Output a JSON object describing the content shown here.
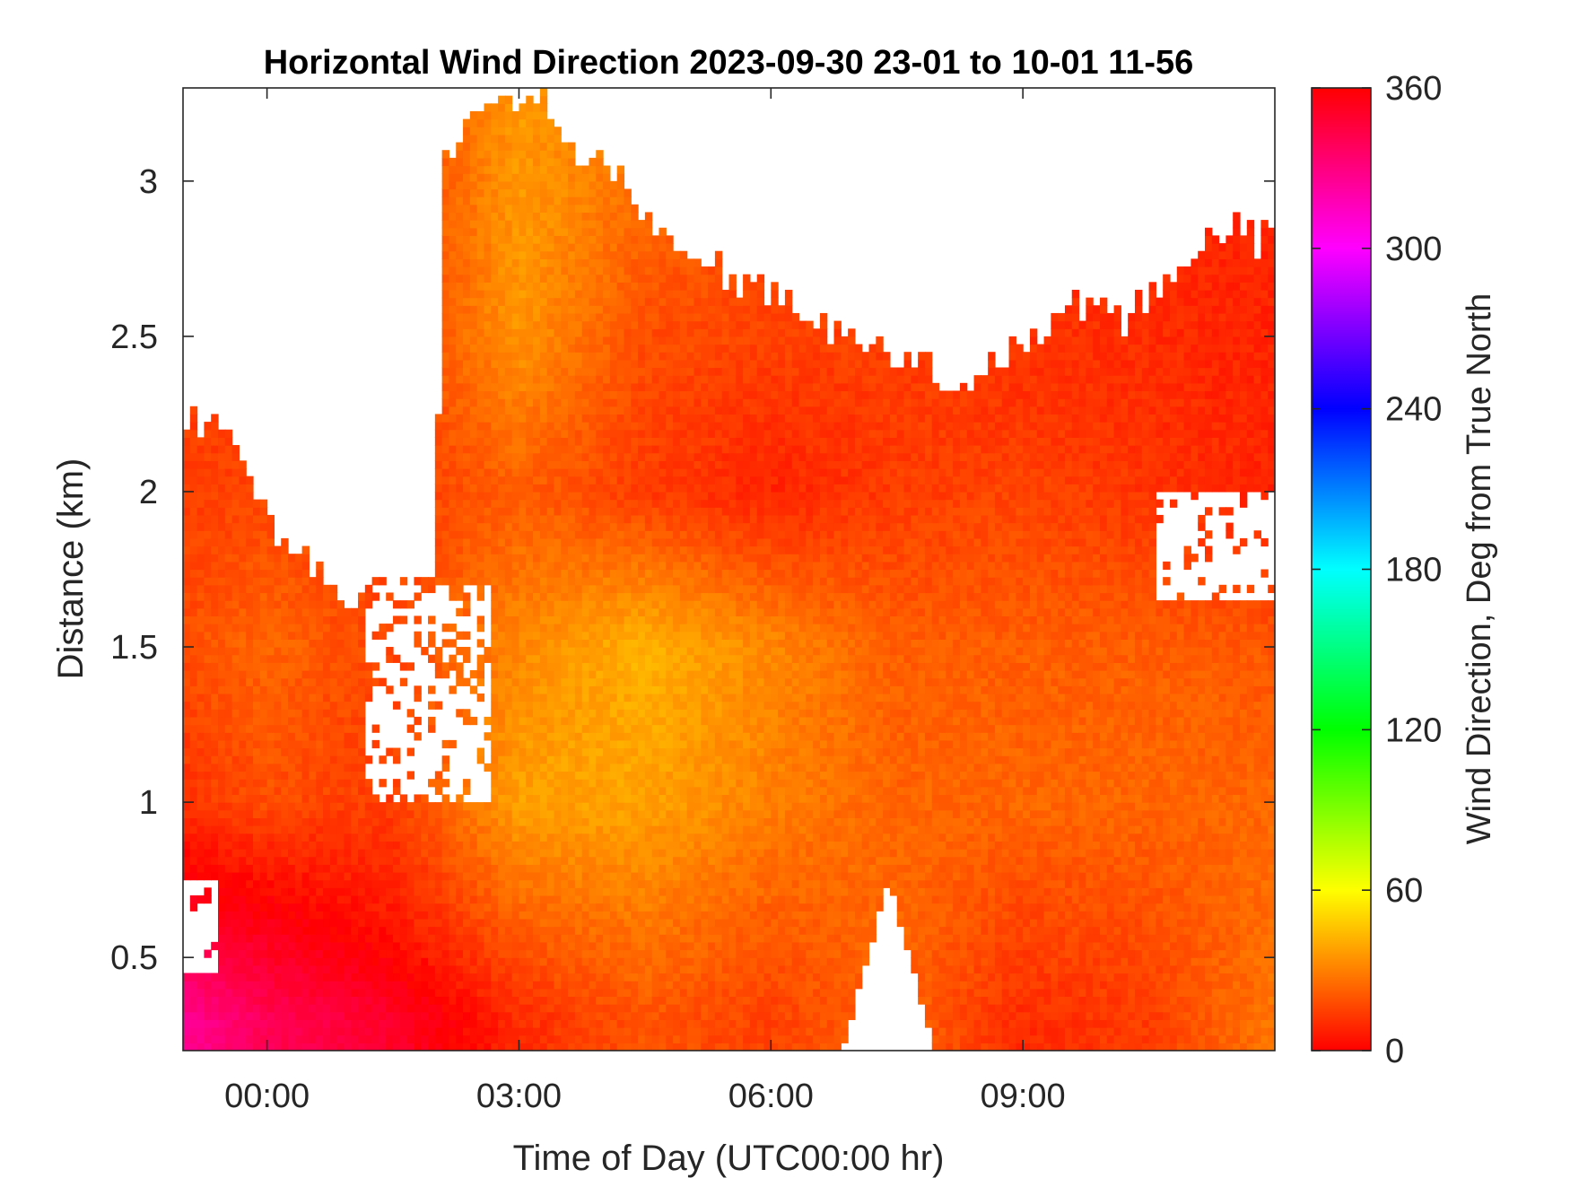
{
  "chart_data": {
    "type": "heatmap",
    "title": "Horizontal Wind Direction 2023-09-30 23-01 to 10-01 11-56",
    "xlabel": "Time of Day (UTC00:00 hr)",
    "ylabel": "Distance (km)",
    "colorbar_label": "Wind Direction, Deg from True North",
    "x_unit": "hours relative to 00:00 UTC",
    "xlim": [
      -1.0,
      12.0
    ],
    "ylim": [
      0.2,
      3.3
    ],
    "clim": [
      0,
      360
    ],
    "x_ticks": [
      {
        "value": 0,
        "label": "00:00"
      },
      {
        "value": 3,
        "label": "03:00"
      },
      {
        "value": 6,
        "label": "06:00"
      },
      {
        "value": 9,
        "label": "09:00"
      }
    ],
    "y_ticks": [
      {
        "value": 0.5,
        "label": "0.5"
      },
      {
        "value": 1.0,
        "label": "1"
      },
      {
        "value": 1.5,
        "label": "1.5"
      },
      {
        "value": 2.0,
        "label": "2"
      },
      {
        "value": 2.5,
        "label": "2.5"
      },
      {
        "value": 3.0,
        "label": "3"
      }
    ],
    "colorbar_ticks": [
      {
        "value": 0,
        "label": "0"
      },
      {
        "value": 60,
        "label": "60"
      },
      {
        "value": 120,
        "label": "120"
      },
      {
        "value": 180,
        "label": "180"
      },
      {
        "value": 240,
        "label": "240"
      },
      {
        "value": 300,
        "label": "300"
      },
      {
        "value": 360,
        "label": "360"
      }
    ],
    "colormap": "hsv",
    "colormap_stops": [
      {
        "value": 0,
        "color": "#ff0000"
      },
      {
        "value": 60,
        "color": "#ffff00"
      },
      {
        "value": 120,
        "color": "#00ff00"
      },
      {
        "value": 180,
        "color": "#00ffff"
      },
      {
        "value": 240,
        "color": "#0000ff"
      },
      {
        "value": 300,
        "color": "#ff00ff"
      },
      {
        "value": 360,
        "color": "#ff0000"
      }
    ],
    "grid": false,
    "missing_data_color": "#ffffff",
    "data_coverage_top_km": [
      {
        "x": -1.0,
        "top": 2.25
      },
      {
        "x": -0.5,
        "top": 2.2
      },
      {
        "x": 0.1,
        "top": 1.85
      },
      {
        "x": 0.6,
        "top": 1.75
      },
      {
        "x": 1.0,
        "top": 1.65
      },
      {
        "x": 1.5,
        "top": 1.7
      },
      {
        "x": 2.0,
        "top": 1.7
      },
      {
        "x": 2.1,
        "top": 3.1
      },
      {
        "x": 2.7,
        "top": 3.25
      },
      {
        "x": 3.3,
        "top": 3.25
      },
      {
        "x": 3.6,
        "top": 3.1
      },
      {
        "x": 4.2,
        "top": 3.0
      },
      {
        "x": 5.0,
        "top": 2.75
      },
      {
        "x": 6.0,
        "top": 2.65
      },
      {
        "x": 6.8,
        "top": 2.5
      },
      {
        "x": 7.5,
        "top": 2.45
      },
      {
        "x": 8.2,
        "top": 2.35
      },
      {
        "x": 9.0,
        "top": 2.45
      },
      {
        "x": 9.5,
        "top": 2.6
      },
      {
        "x": 10.2,
        "top": 2.55
      },
      {
        "x": 11.0,
        "top": 2.75
      },
      {
        "x": 11.5,
        "top": 2.85
      },
      {
        "x": 12.0,
        "top": 2.8
      }
    ],
    "data_gaps": [
      {
        "x_range": [
          1.2,
          2.7
        ],
        "y_range": [
          1.0,
          1.7
        ],
        "description_shape": "ragged"
      },
      {
        "x_range": [
          6.85,
          7.95
        ],
        "y_range": [
          0.2,
          0.75
        ],
        "description_shape": "triangle"
      },
      {
        "x_range": [
          -1.0,
          -0.6
        ],
        "y_range": [
          0.45,
          0.75
        ]
      },
      {
        "x_range": [
          10.6,
          12.0
        ],
        "y_range": [
          1.65,
          2.0
        ]
      }
    ],
    "direction_field_samples": [
      {
        "x": -1.0,
        "y_km": [
          0.3,
          0.6,
          1.0,
          1.5,
          2.0
        ],
        "deg": [
          325,
          350,
          12,
          18,
          14
        ]
      },
      {
        "x": 0.0,
        "y_km": [
          0.3,
          0.6,
          1.0,
          1.5,
          2.0
        ],
        "deg": [
          340,
          355,
          18,
          24,
          16
        ]
      },
      {
        "x": 1.5,
        "y_km": [
          0.3,
          0.6,
          1.0,
          1.5,
          2.0
        ],
        "deg": [
          350,
          5,
          14,
          16,
          14
        ]
      },
      {
        "x": 3.0,
        "y_km": [
          0.3,
          1.0,
          1.5,
          2.0,
          2.5,
          3.0
        ],
        "deg": [
          10,
          38,
          32,
          22,
          35,
          36
        ]
      },
      {
        "x": 4.5,
        "y_km": [
          0.3,
          1.0,
          1.5,
          2.0,
          2.5,
          3.0
        ],
        "deg": [
          20,
          38,
          42,
          14,
          18,
          26
        ]
      },
      {
        "x": 6.0,
        "y_km": [
          0.3,
          1.0,
          1.5,
          2.0,
          2.5
        ],
        "deg": [
          15,
          30,
          32,
          8,
          16
        ]
      },
      {
        "x": 7.5,
        "y_km": [
          0.9,
          1.5,
          2.0,
          2.3
        ],
        "deg": [
          24,
          22,
          14,
          14
        ]
      },
      {
        "x": 9.0,
        "y_km": [
          0.3,
          1.0,
          1.5,
          2.0,
          2.3
        ],
        "deg": [
          10,
          24,
          22,
          16,
          12
        ]
      },
      {
        "x": 10.5,
        "y_km": [
          0.3,
          1.0,
          1.5,
          2.0,
          2.5
        ],
        "deg": [
          14,
          24,
          22,
          12,
          10
        ]
      },
      {
        "x": 12.0,
        "y_km": [
          0.3,
          1.0,
          1.5,
          2.0,
          2.5
        ],
        "deg": [
          28,
          24,
          20,
          8,
          8
        ]
      }
    ]
  }
}
